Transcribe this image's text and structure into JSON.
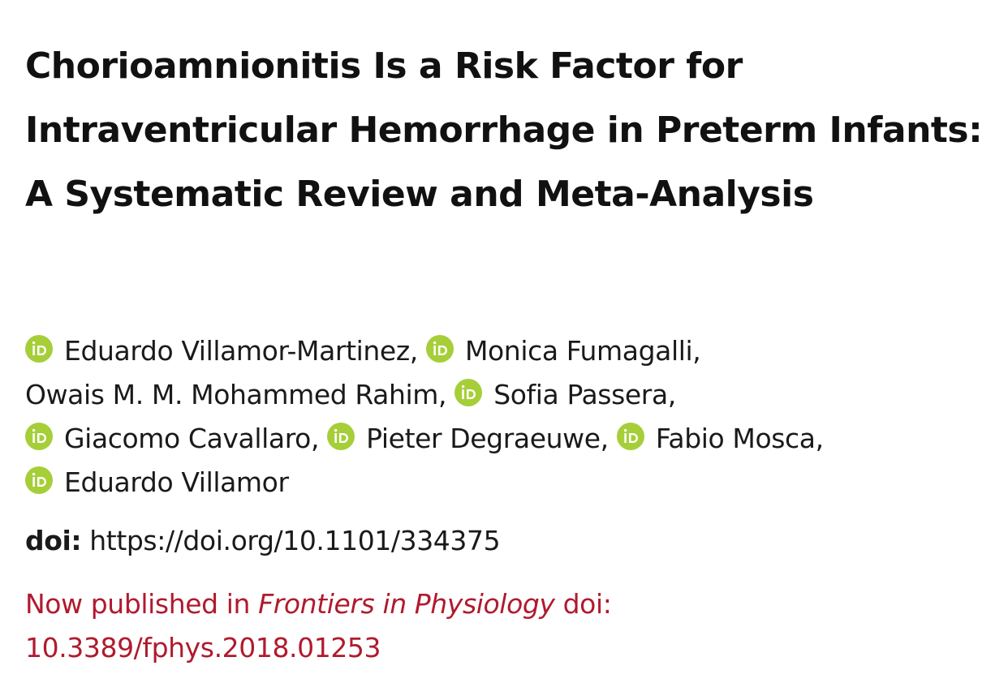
{
  "title": "Chorioamnionitis Is a Risk Factor for Intraventricular Hemorrhage in Preterm Infants: A Systematic Review and Meta-Analysis",
  "authors": [
    {
      "name": "Eduardo Villamor-Martinez",
      "sep": ",",
      "orcid": true
    },
    {
      "name": "Monica Fumagalli",
      "sep": ",",
      "orcid": true
    },
    {
      "name": "Owais M. M. Mohammed Rahim",
      "sep": ",",
      "orcid": false
    },
    {
      "name": "Sofia Passera",
      "sep": ",",
      "orcid": true
    },
    {
      "name": "Giacomo Cavallaro",
      "sep": ",",
      "orcid": true
    },
    {
      "name": "Pieter Degraeuwe",
      "sep": ",",
      "orcid": true
    },
    {
      "name": "Fabio Mosca",
      "sep": ",",
      "orcid": true
    },
    {
      "name": "Eduardo Villamor",
      "sep": "",
      "orcid": true
    }
  ],
  "doi": {
    "label": "doi:",
    "url": "https://doi.org/10.1101/334375"
  },
  "published": {
    "prefix": "Now published in ",
    "journal": "Frontiers in Physiology",
    "suffix": " doi: 10.3389/fphys.2018.01253"
  },
  "colors": {
    "orcid": "#A6CE39",
    "published": "#B01A2E",
    "text": "#1A1A1A"
  },
  "icons": {
    "orcid": "orcid-icon"
  }
}
